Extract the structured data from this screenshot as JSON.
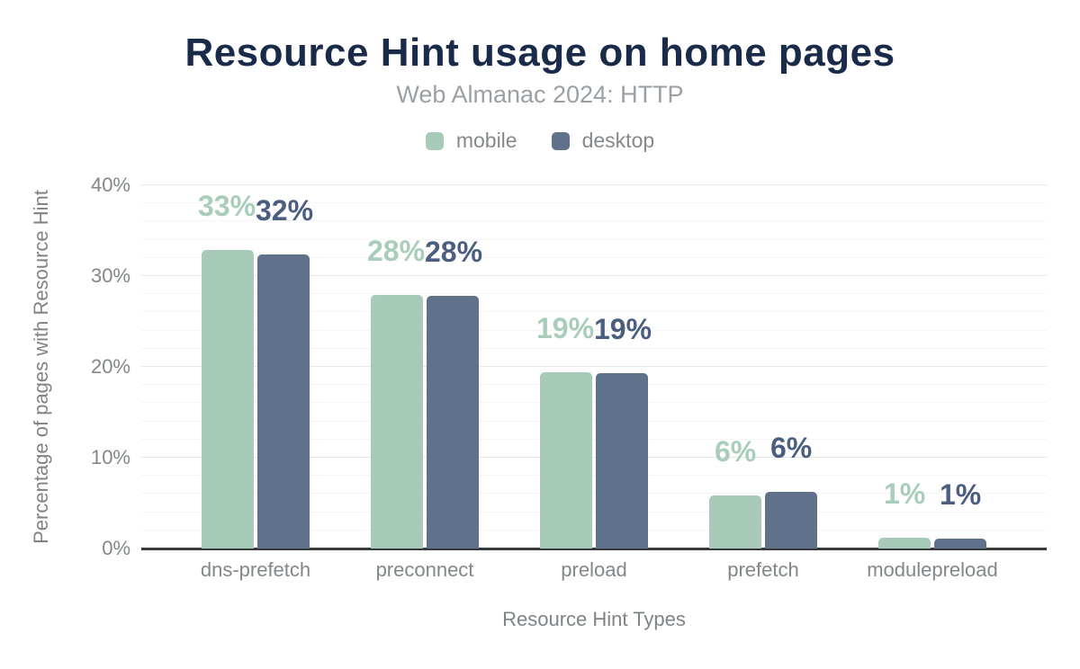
{
  "header": {
    "title": "Resource Hint usage on home pages",
    "subtitle": "Web Almanac 2024: HTTP"
  },
  "legend": {
    "items": [
      {
        "id": "mobile",
        "label": "mobile",
        "color": "#a7cab9"
      },
      {
        "id": "desktop",
        "label": "desktop",
        "color": "#60718c"
      }
    ]
  },
  "chart_data": {
    "type": "bar",
    "title": "Resource Hint usage on home pages",
    "subtitle": "Web Almanac 2024: HTTP",
    "categories": [
      "dns-prefetch",
      "preconnect",
      "preload",
      "prefetch",
      "modulepreload"
    ],
    "series": [
      {
        "name": "mobile",
        "color": "#a7cab9",
        "label_color": "#a9ccbb",
        "values": [
          32.9,
          27.9,
          19.4,
          5.8,
          1.2
        ],
        "labels": [
          "33%",
          "28%",
          "19%",
          "6%",
          "1%"
        ]
      },
      {
        "name": "desktop",
        "color": "#60718c",
        "label_color": "#4b5e80",
        "values": [
          32.4,
          27.8,
          19.3,
          6.2,
          1.1
        ],
        "labels": [
          "32%",
          "28%",
          "19%",
          "6%",
          "1%"
        ]
      }
    ],
    "xlabel": "Resource Hint Types",
    "ylabel": "Percentage of pages with Resource Hint",
    "ylim": [
      0,
      40
    ],
    "yticks": [
      0,
      10,
      20,
      30,
      40
    ],
    "ytick_labels": [
      "0%",
      "10%",
      "20%",
      "30%",
      "40%"
    ],
    "minor_grid_step": 2,
    "grid": true,
    "legend_position": "top"
  }
}
